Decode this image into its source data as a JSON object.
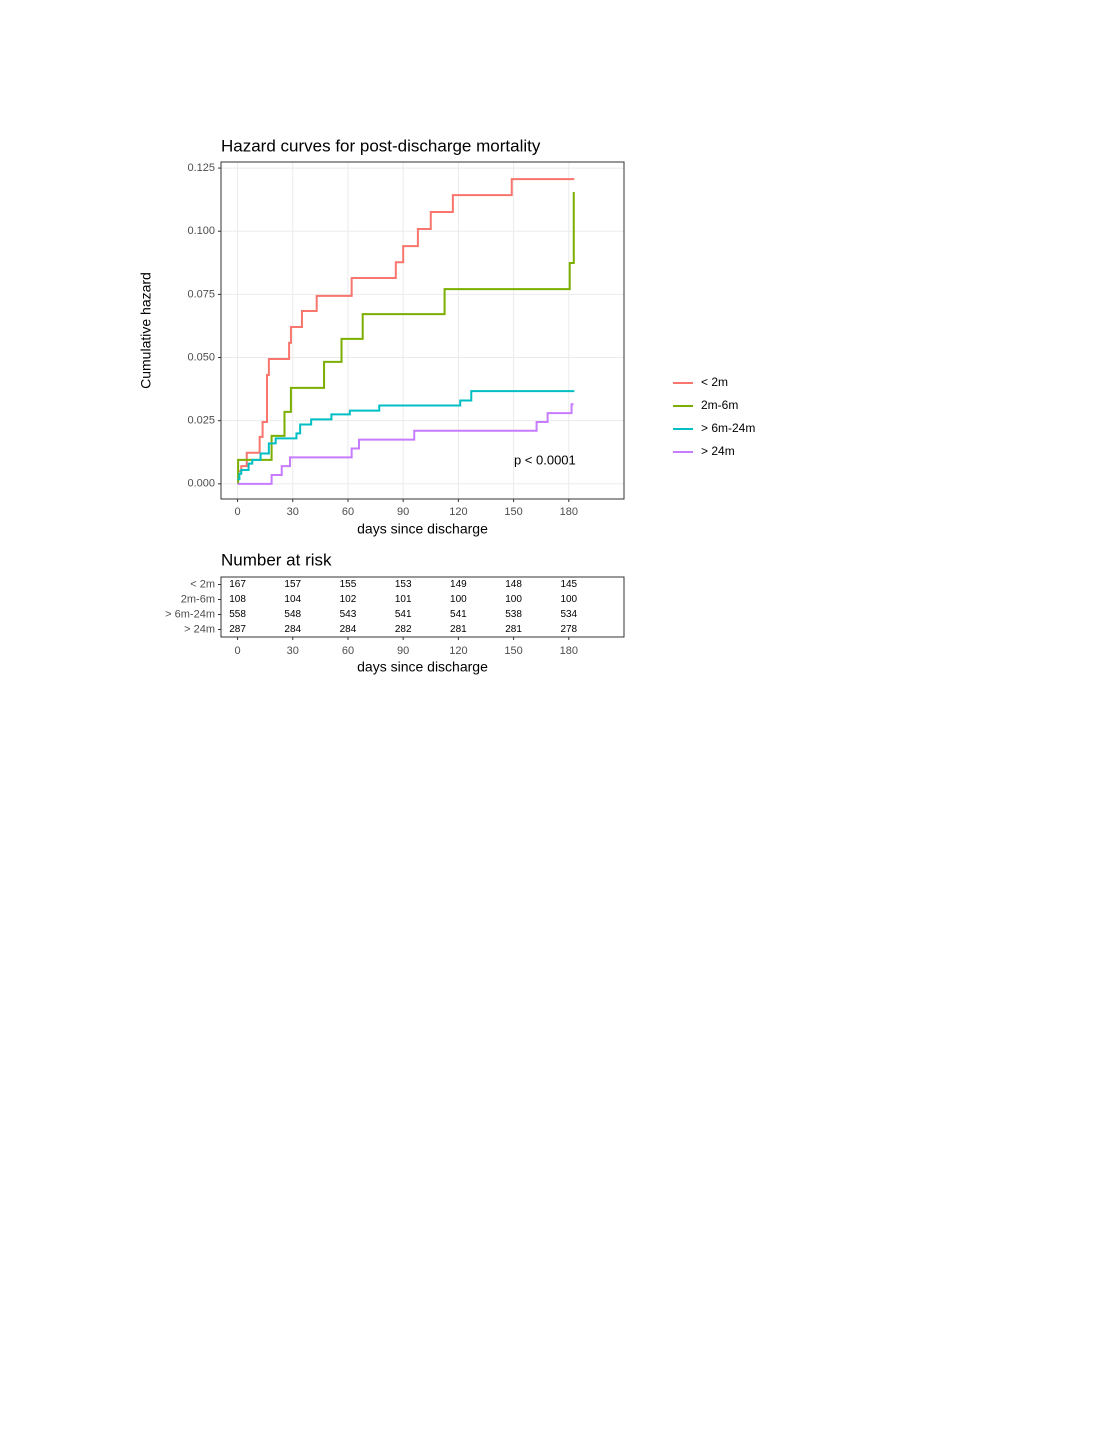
{
  "chart_data": [
    {
      "type": "line",
      "step": true,
      "title": "Hazard curves for post-discharge mortality",
      "x_label": "days since discharge",
      "y_label": "Cumulative hazard",
      "annotation": "p < 0.0001",
      "annotation_at": [
        167,
        0.009
      ],
      "xlim": [
        -9,
        210
      ],
      "ylim": [
        -0.006,
        0.1274
      ],
      "grid": true,
      "legend": "right",
      "xticks": [
        0,
        30,
        60,
        90,
        120,
        150,
        180
      ],
      "yticks": [
        {
          "value": 0,
          "label": "0.000"
        },
        {
          "value": 0.025,
          "label": "0.025"
        },
        {
          "value": 0.05,
          "label": "0.050"
        },
        {
          "value": 0.075,
          "label": "0.075"
        },
        {
          "value": 0.1,
          "label": "0.100"
        },
        {
          "value": 0.125,
          "label": "0.125"
        }
      ],
      "series": [
        {
          "name": "< 2m",
          "color": "#F8766D",
          "x": [
            0,
            2,
            5,
            12,
            13.6,
            16,
            17,
            28,
            29,
            35,
            43,
            62,
            86,
            90,
            98,
            105,
            117,
            149,
            183
          ],
          "values": [
            0.005,
            0.007,
            0.0123,
            0.0186,
            0.0245,
            0.0431,
            0.0494,
            0.0558,
            0.0621,
            0.0684,
            0.0744,
            0.0815,
            0.0877,
            0.0941,
            0.1009,
            0.1076,
            0.1143,
            0.1206,
            0.1206
          ]
        },
        {
          "name": "2m-6m",
          "color": "#7CAE00",
          "x": [
            0,
            0.3,
            18.5,
            25.5,
            29,
            47,
            56.5,
            68,
            112.5,
            180.5,
            182.7
          ],
          "values": [
            0,
            0.0095,
            0.019,
            0.0285,
            0.038,
            0.0483,
            0.0574,
            0.0672,
            0.0771,
            0.0874,
            0.1155
          ]
        },
        {
          "name": "> 6m-24m",
          "color": "#00BFC4",
          "x": [
            0,
            1,
            2,
            6,
            8,
            12.5,
            17,
            20.7,
            32,
            34,
            40,
            51,
            61,
            77,
            121,
            127,
            183
          ],
          "values": [
            0.0018,
            0.004,
            0.0055,
            0.008,
            0.0095,
            0.012,
            0.016,
            0.018,
            0.02,
            0.0235,
            0.0255,
            0.0275,
            0.029,
            0.031,
            0.033,
            0.0367,
            0.0367
          ]
        },
        {
          "name": "> 24m",
          "color": "#C77CFF",
          "x": [
            0,
            18.5,
            24,
            28.5,
            62,
            66,
            96,
            162.5,
            168.5,
            181.5,
            182.6
          ],
          "values": [
            0,
            0.0035,
            0.007,
            0.0105,
            0.014,
            0.0175,
            0.021,
            0.0245,
            0.028,
            0.0315,
            0.0315
          ]
        }
      ]
    },
    {
      "type": "table",
      "title": "Number at risk",
      "x_label": "days since discharge",
      "xlim": [
        -9,
        210
      ],
      "xticks": [
        0,
        30,
        60,
        90,
        120,
        150,
        180
      ],
      "rows": [
        {
          "name": "< 2m",
          "values": [
            167,
            157,
            155,
            153,
            149,
            148,
            145
          ]
        },
        {
          "name": "2m-6m",
          "values": [
            108,
            104,
            102,
            101,
            100,
            100,
            100
          ]
        },
        {
          "name": "> 6m-24m",
          "values": [
            558,
            548,
            543,
            541,
            541,
            538,
            534
          ]
        },
        {
          "name": "> 24m",
          "values": [
            287,
            284,
            284,
            282,
            281,
            281,
            278
          ]
        }
      ]
    }
  ]
}
